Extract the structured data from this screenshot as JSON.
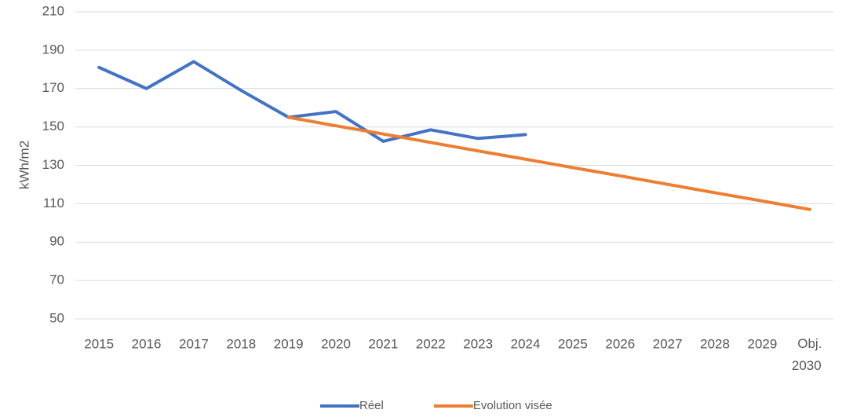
{
  "chart_data": {
    "type": "line",
    "y_label": "kWh/m2",
    "categories": [
      "2015",
      "2016",
      "2017",
      "2018",
      "2019",
      "2020",
      "2021",
      "2022",
      "2023",
      "2024",
      "2025",
      "2026",
      "2027",
      "2028",
      "2029",
      "Obj. 2030"
    ],
    "series": [
      {
        "name": "Réel",
        "color": "#4472c4",
        "values": [
          181,
          170,
          184,
          169,
          155,
          158,
          142.5,
          148.5,
          144,
          146,
          null,
          null,
          null,
          null,
          null,
          null
        ]
      },
      {
        "name": "Evolution visée",
        "color": "#ed7d31",
        "values": [
          null,
          null,
          null,
          null,
          155,
          150.6,
          146.3,
          141.9,
          137.5,
          133.2,
          128.8,
          124.5,
          120.1,
          115.7,
          111.4,
          107
        ]
      }
    ],
    "ylim": [
      50,
      210
    ],
    "yticks": [
      50,
      70,
      90,
      110,
      130,
      150,
      170,
      190,
      210
    ],
    "grid": true,
    "legend": "bottom"
  }
}
